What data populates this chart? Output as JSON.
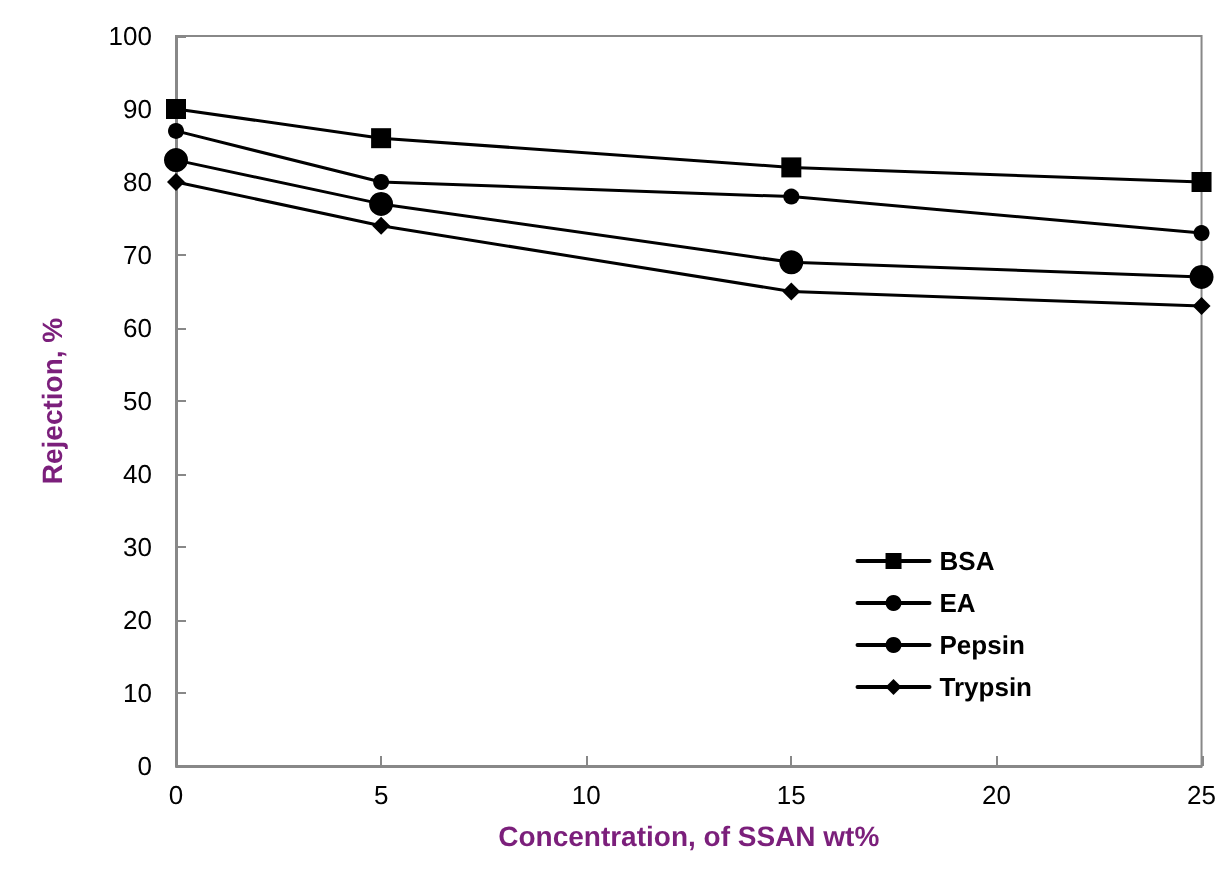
{
  "chart_data": {
    "type": "line",
    "xlabel": "Concentration, of SSAN wt%",
    "ylabel": "Rejection, %",
    "x": [
      0,
      5,
      15,
      25
    ],
    "series": [
      {
        "name": "BSA",
        "color": "#000000",
        "marker": "square",
        "values": [
          90,
          86,
          82,
          80
        ]
      },
      {
        "name": "EA",
        "color": "#000000",
        "marker": "circle",
        "values": [
          87,
          80,
          78,
          73
        ]
      },
      {
        "name": "Pepsin",
        "color": "#000000",
        "marker": "circle",
        "values": [
          83,
          77,
          69,
          67
        ]
      },
      {
        "name": "Trypsin",
        "color": "#000000",
        "marker": "diamond",
        "values": [
          80,
          74,
          65,
          63
        ]
      }
    ],
    "xlim": [
      0,
      25
    ],
    "xticks": [
      0,
      5,
      10,
      15,
      20,
      25
    ],
    "ylim": [
      0,
      100
    ],
    "yticks": [
      0,
      10,
      20,
      30,
      40,
      50,
      60,
      70,
      80,
      90,
      100
    ],
    "grid": false,
    "legend": "bottom right",
    "line_style": "solid"
  }
}
